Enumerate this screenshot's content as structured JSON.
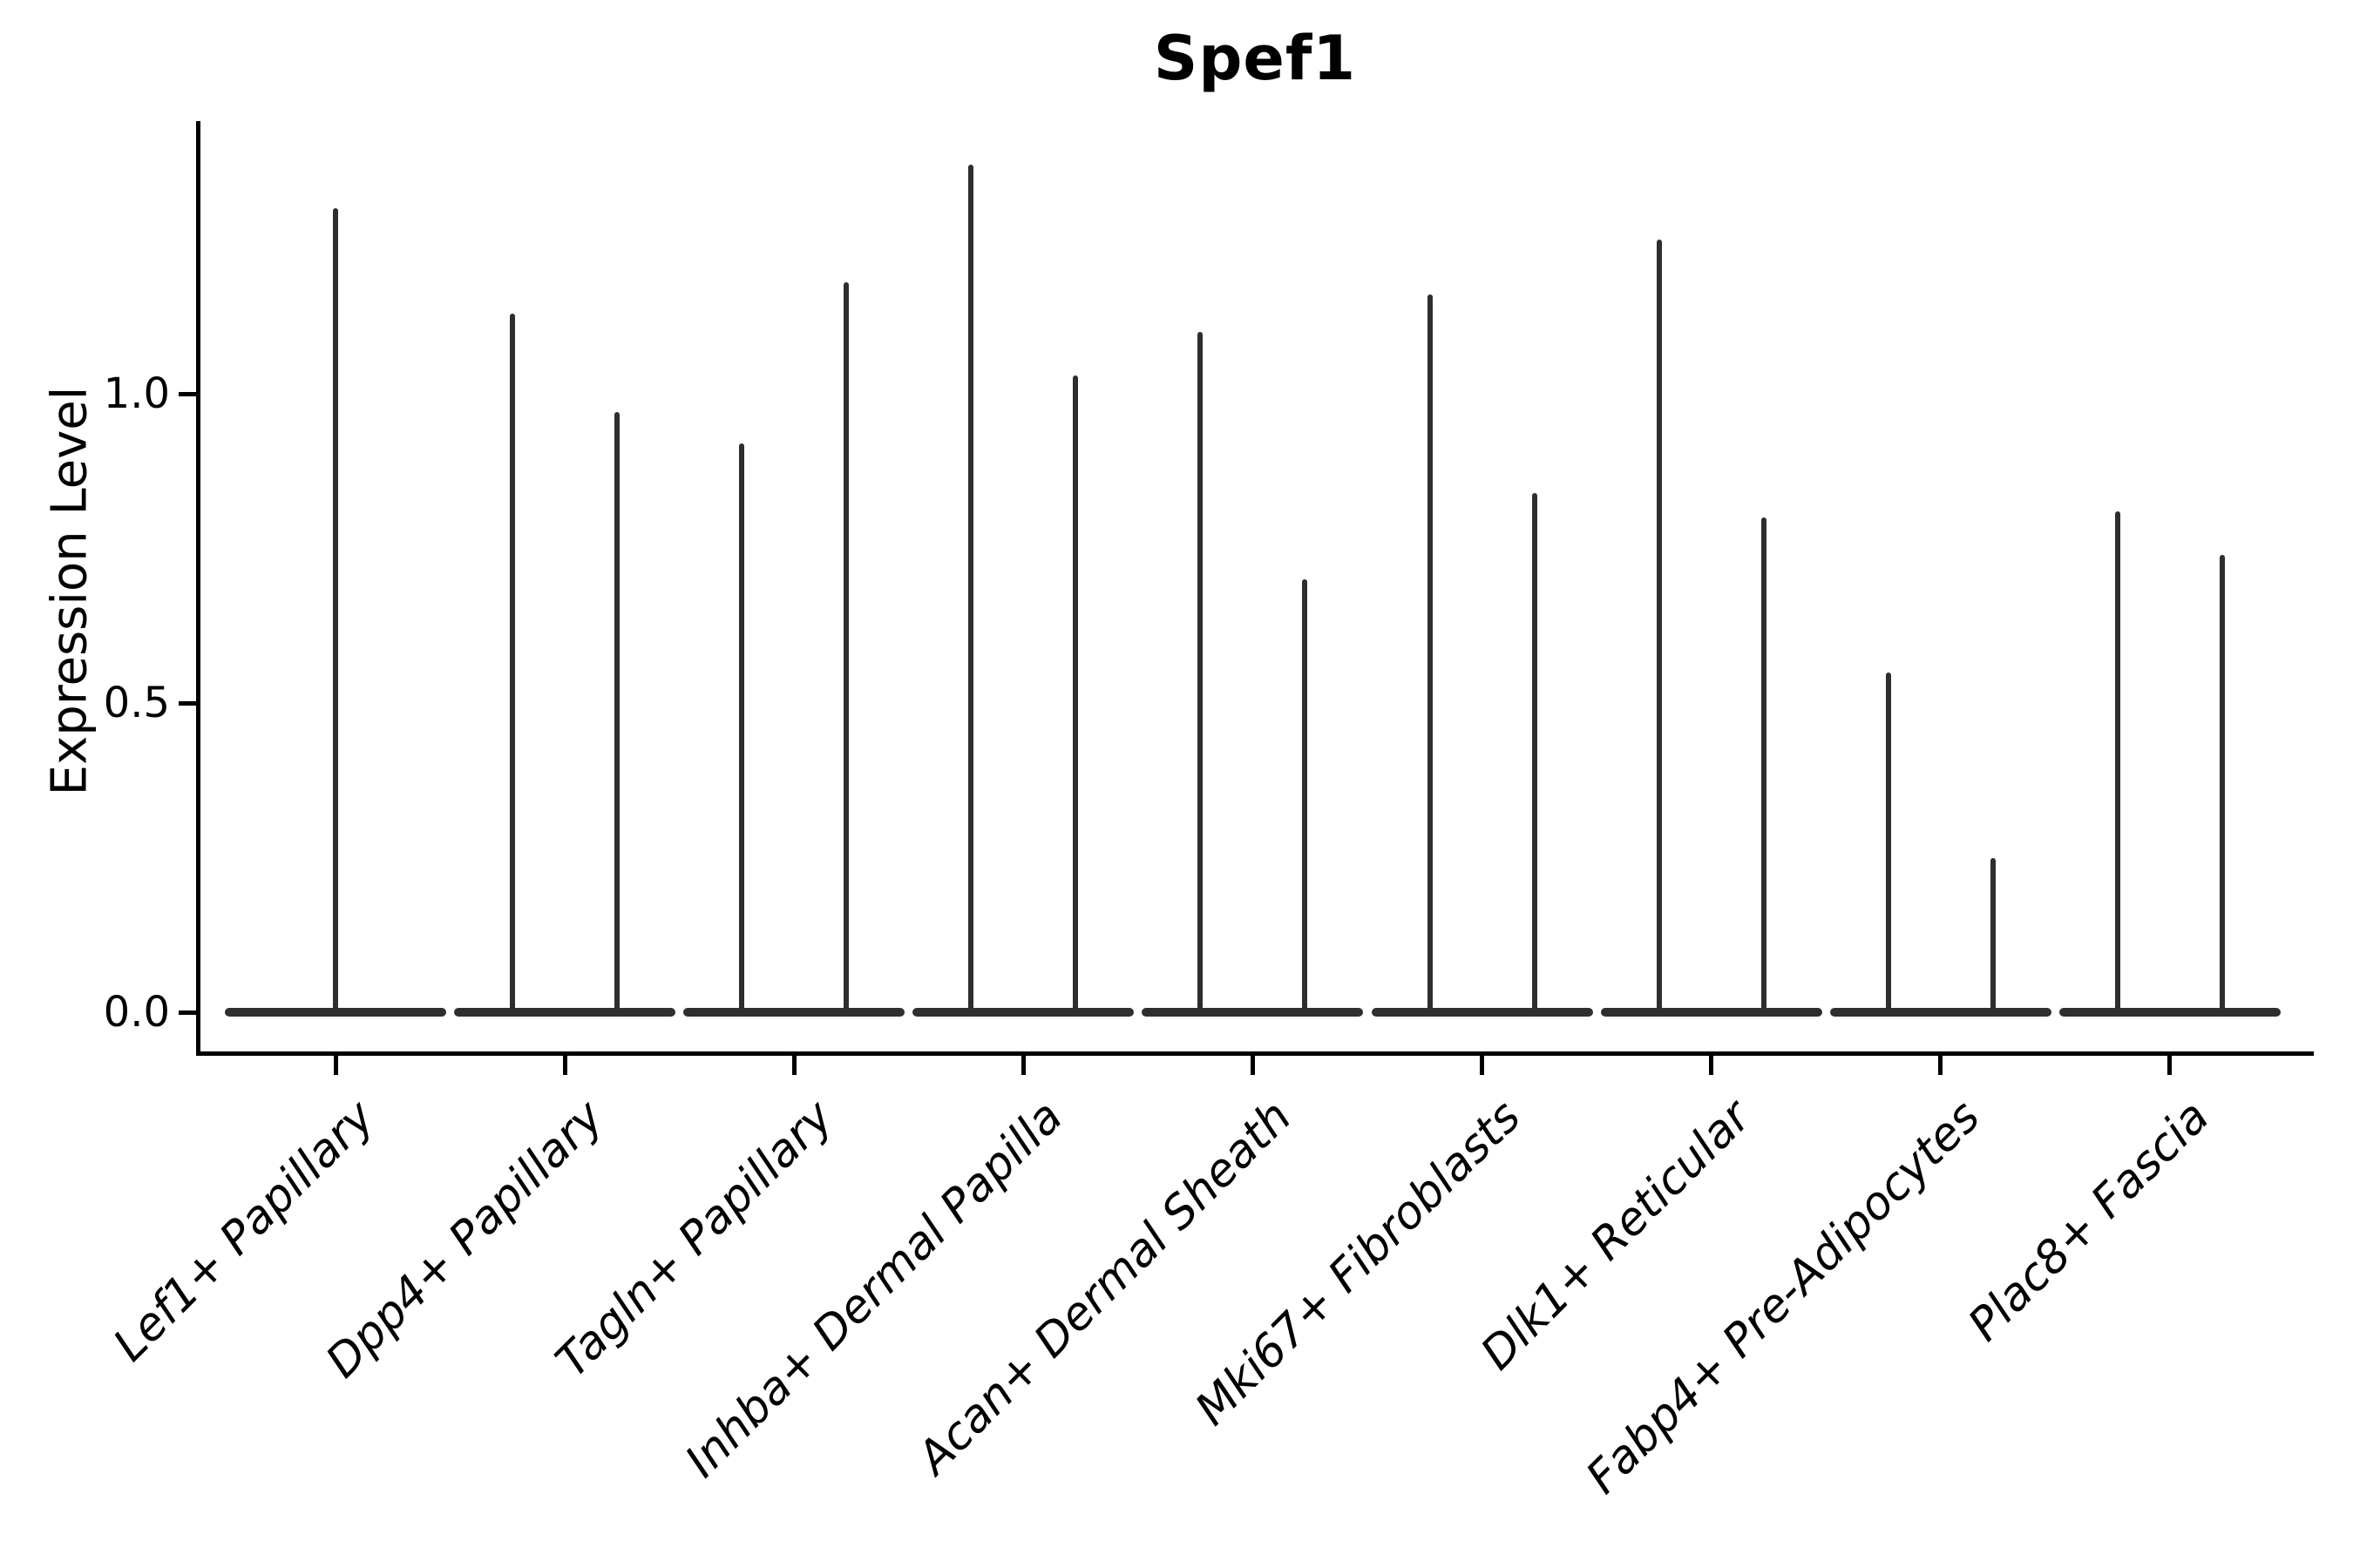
{
  "title": "Spef1",
  "chart_data": {
    "type": "violin",
    "title": "Spef1",
    "xlabel": "",
    "ylabel": "Expression Level",
    "ylim": [
      0,
      1.44
    ],
    "yticks": [
      {
        "value": 0.0,
        "label": "0.0"
      },
      {
        "value": 0.5,
        "label": "0.5"
      },
      {
        "value": 1.0,
        "label": "1.0"
      }
    ],
    "grid": false,
    "legend": "none",
    "violin_color": "#2e2e2e",
    "axis_color": "#000000",
    "categories": [
      "Lef1+ Papillary",
      "Dpp4+ Papillary",
      "Tagln+ Papillary",
      "Inhba+ Dermal Papilla",
      "Acan+ Dermal Sheath",
      "Mki67+ Fibroblasts",
      "Dlk1+ Reticular",
      "Fabp4+ Pre-Adipocytes",
      "Plac8+ Fascia"
    ],
    "series": [
      {
        "category": "Lef1+ Papillary",
        "violins": [
          {
            "baseline": 0.0,
            "peak": 1.3
          }
        ]
      },
      {
        "category": "Dpp4+ Papillary",
        "violins": [
          {
            "baseline": 0.0,
            "peak": 1.13
          },
          {
            "baseline": 0.0,
            "peak": 0.97
          }
        ]
      },
      {
        "category": "Tagln+ Papillary",
        "violins": [
          {
            "baseline": 0.0,
            "peak": 0.92
          },
          {
            "baseline": 0.0,
            "peak": 1.18
          }
        ]
      },
      {
        "category": "Inhba+ Dermal Papilla",
        "violins": [
          {
            "baseline": 0.0,
            "peak": 1.37
          },
          {
            "baseline": 0.0,
            "peak": 1.03
          }
        ]
      },
      {
        "category": "Acan+ Dermal Sheath",
        "violins": [
          {
            "baseline": 0.0,
            "peak": 1.1
          },
          {
            "baseline": 0.0,
            "peak": 0.7
          }
        ]
      },
      {
        "category": "Mki67+ Fibroblasts",
        "violins": [
          {
            "baseline": 0.0,
            "peak": 1.16
          },
          {
            "baseline": 0.0,
            "peak": 0.84
          }
        ]
      },
      {
        "category": "Dlk1+ Reticular",
        "violins": [
          {
            "baseline": 0.0,
            "peak": 1.25
          },
          {
            "baseline": 0.0,
            "peak": 0.8
          }
        ]
      },
      {
        "category": "Fabp4+ Pre-Adipocytes",
        "violins": [
          {
            "baseline": 0.0,
            "peak": 0.55
          },
          {
            "baseline": 0.0,
            "peak": 0.25
          }
        ]
      },
      {
        "category": "Plac8+ Fascia",
        "violins": [
          {
            "baseline": 0.0,
            "peak": 0.81
          },
          {
            "baseline": 0.0,
            "peak": 0.74
          }
        ]
      }
    ]
  }
}
